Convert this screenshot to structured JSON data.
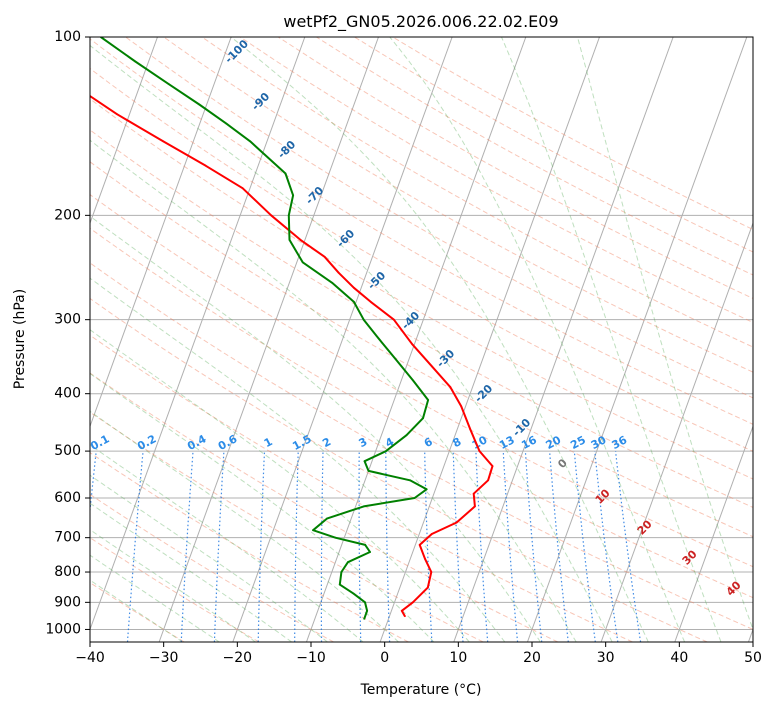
{
  "chart_data": {
    "type": "skew-t",
    "title": "wetPf2_GN05.2026.006.22.02.E09",
    "xlabel": "Temperature (°C)",
    "ylabel": "Pressure (hPa)",
    "xlim": [
      -40,
      50
    ],
    "ylim": [
      1050,
      100
    ],
    "x_ticks": [
      -40,
      -30,
      -20,
      -10,
      0,
      10,
      20,
      30,
      40,
      50
    ],
    "y_ticks": [
      1000,
      900,
      800,
      700,
      600,
      500,
      400,
      300,
      200,
      100
    ],
    "temperature": {
      "name": "Temperature",
      "color": "#ff0000",
      "points": [
        [
          950,
          2.1
        ],
        [
          930,
          1.4
        ],
        [
          900,
          2.5
        ],
        [
          850,
          3.8
        ],
        [
          800,
          3.5
        ],
        [
          760,
          2.0
        ],
        [
          720,
          0.6
        ],
        [
          690,
          1.7
        ],
        [
          660,
          4.5
        ],
        [
          620,
          6.2
        ],
        [
          590,
          5.4
        ],
        [
          560,
          6.7
        ],
        [
          530,
          6.6
        ],
        [
          500,
          4.1
        ],
        [
          460,
          1.8
        ],
        [
          420,
          -0.6
        ],
        [
          390,
          -3.0
        ],
        [
          360,
          -6.5
        ],
        [
          330,
          -10.3
        ],
        [
          300,
          -14.0
        ],
        [
          280,
          -18.0
        ],
        [
          265,
          -21.0
        ],
        [
          250,
          -23.8
        ],
        [
          235,
          -26.5
        ],
        [
          220,
          -30.6
        ],
        [
          200,
          -35.8
        ],
        [
          180,
          -41.0
        ],
        [
          165,
          -47.1
        ],
        [
          150,
          -54.1
        ],
        [
          135,
          -61.7
        ],
        [
          120,
          -69.3
        ],
        [
          110,
          -74.6
        ],
        [
          100,
          -79.9
        ]
      ]
    },
    "dewpoint": {
      "name": "Dewpoint",
      "color": "#008000",
      "points": [
        [
          960,
          -3.3
        ],
        [
          930,
          -3.3
        ],
        [
          900,
          -4.0
        ],
        [
          870,
          -6.0
        ],
        [
          840,
          -8.3
        ],
        [
          800,
          -8.7
        ],
        [
          770,
          -8.3
        ],
        [
          740,
          -5.8
        ],
        [
          720,
          -6.8
        ],
        [
          700,
          -11.2
        ],
        [
          680,
          -14.6
        ],
        [
          650,
          -13.3
        ],
        [
          620,
          -8.9
        ],
        [
          600,
          -2.4
        ],
        [
          580,
          -1.2
        ],
        [
          560,
          -3.9
        ],
        [
          540,
          -10.0
        ],
        [
          520,
          -11.0
        ],
        [
          500,
          -8.6
        ],
        [
          470,
          -6.6
        ],
        [
          440,
          -5.2
        ],
        [
          410,
          -5.4
        ],
        [
          380,
          -8.4
        ],
        [
          350,
          -11.8
        ],
        [
          320,
          -15.5
        ],
        [
          300,
          -18.1
        ],
        [
          280,
          -20.3
        ],
        [
          260,
          -24.2
        ],
        [
          240,
          -29.2
        ],
        [
          220,
          -32.1
        ],
        [
          200,
          -33.4
        ],
        [
          185,
          -33.8
        ],
        [
          170,
          -35.9
        ],
        [
          160,
          -39.0
        ],
        [
          150,
          -42.3
        ],
        [
          140,
          -46.4
        ],
        [
          130,
          -51.0
        ],
        [
          120,
          -56.2
        ],
        [
          110,
          -61.8
        ],
        [
          100,
          -67.7
        ]
      ]
    },
    "dry_adiabat_labels": [
      "-100",
      "-90",
      "-80",
      "-70",
      "-60",
      "-50",
      "-40",
      "-30",
      "-20",
      "-10"
    ],
    "dry_adiabat_label_values": [
      -100,
      -90,
      -80,
      -70,
      -60,
      -50,
      -40,
      -30,
      -20,
      -10
    ],
    "mixing_ratio_labels": [
      "0.1",
      "0.2",
      "0.4",
      "0.6",
      "1",
      "1.5",
      "2",
      "3",
      "4",
      "6",
      "8",
      "10",
      "13",
      "16",
      "20",
      "25",
      "30",
      "36"
    ],
    "mixing_ratio_values": [
      0.1,
      0.2,
      0.4,
      0.6,
      1,
      1.5,
      2,
      3,
      4,
      6,
      8,
      10,
      13,
      16,
      20,
      25,
      30,
      36
    ],
    "moist_adiabat_labels": [
      "0",
      "10",
      "20",
      "30",
      "40"
    ],
    "moist_adiabat_values": [
      0,
      10,
      20,
      30,
      40
    ],
    "colors": {
      "grid": "#b0b0b0",
      "dry_adiabat": "#f08060",
      "moist_adiabat": "#60b060",
      "mixing_ratio": "#1f77e0",
      "dry_label": "#1f66a8",
      "mixing_label": "#2b8ce8",
      "moist_label_zero": "#777777",
      "moist_label": "#cc2222"
    }
  }
}
